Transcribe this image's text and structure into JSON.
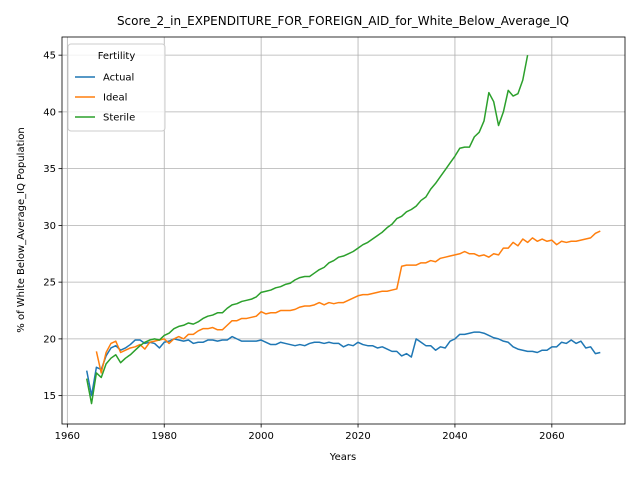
{
  "chart_data": {
    "type": "line",
    "title": "Score_2_in_EXPENDITURE_FOR_FOREIGN_AID_for_White_Below_Average_IQ",
    "x_label": "Years",
    "y_label": "% of White Below_Average_IQ Population",
    "legend_title": "Fertility",
    "legend": "upper left",
    "grid": true,
    "xlim": [
      1958.9,
      2075.1
    ],
    "ylim": [
      12.5,
      46.6
    ],
    "xticks": [
      1960,
      1980,
      2000,
      2020,
      2040,
      2060
    ],
    "yticks": [
      15,
      20,
      25,
      30,
      35,
      40,
      45
    ],
    "x": [
      1964,
      1965,
      1966,
      1967,
      1968,
      1969,
      1970,
      1971,
      1972,
      1973,
      1974,
      1975,
      1976,
      1977,
      1978,
      1979,
      1980,
      1981,
      1982,
      1983,
      1984,
      1985,
      1986,
      1987,
      1988,
      1989,
      1990,
      1991,
      1992,
      1993,
      1994,
      1995,
      1996,
      1997,
      1998,
      1999,
      2000,
      2001,
      2002,
      2003,
      2004,
      2005,
      2006,
      2007,
      2008,
      2009,
      2010,
      2011,
      2012,
      2013,
      2014,
      2015,
      2016,
      2017,
      2018,
      2019,
      2020,
      2021,
      2022,
      2023,
      2024,
      2025,
      2026,
      2027,
      2028,
      2029,
      2030,
      2031,
      2032,
      2033,
      2034,
      2035,
      2036,
      2037,
      2038,
      2039,
      2040,
      2041,
      2042,
      2043,
      2044,
      2045,
      2046,
      2047,
      2048,
      2049,
      2050,
      2051,
      2052,
      2053,
      2054,
      2055,
      2056,
      2057,
      2058,
      2059,
      2060,
      2061,
      2062,
      2063,
      2064,
      2065,
      2066,
      2067,
      2068,
      2069,
      2070
    ],
    "series": [
      {
        "name": "Actual",
        "color": "#1f77b4",
        "values": [
          17.2,
          15.0,
          17.5,
          17.3,
          18.5,
          19.2,
          19.4,
          19.0,
          19.2,
          19.5,
          19.9,
          19.9,
          19.6,
          19.7,
          19.6,
          19.2,
          19.7,
          19.8,
          20.0,
          19.9,
          19.8,
          19.9,
          19.6,
          19.7,
          19.7,
          19.9,
          19.9,
          19.8,
          19.9,
          19.9,
          20.2,
          20.0,
          19.8,
          19.8,
          19.8,
          19.8,
          19.9,
          19.7,
          19.5,
          19.5,
          19.7,
          19.6,
          19.5,
          19.4,
          19.5,
          19.4,
          19.6,
          19.7,
          19.7,
          19.6,
          19.7,
          19.6,
          19.6,
          19.3,
          19.5,
          19.4,
          19.7,
          19.5,
          19.4,
          19.4,
          19.2,
          19.3,
          19.1,
          18.9,
          18.9,
          18.5,
          18.7,
          18.4,
          20.0,
          19.7,
          19.4,
          19.4,
          19.0,
          19.3,
          19.2,
          19.8,
          20.0,
          20.4,
          20.4,
          20.5,
          20.6,
          20.6,
          20.5,
          20.3,
          20.1,
          20.0,
          19.8,
          19.7,
          19.3,
          19.1,
          19.0,
          18.9,
          18.9,
          18.8,
          19.0,
          19.0,
          19.3,
          19.3,
          19.7,
          19.6,
          19.9,
          19.6,
          19.8,
          19.2,
          19.3,
          18.7,
          18.8
        ]
      },
      {
        "name": "Ideal",
        "color": "#ff7f0e",
        "values": [
          null,
          null,
          18.9,
          17.0,
          18.8,
          19.6,
          19.8,
          18.8,
          19.0,
          19.2,
          19.3,
          19.5,
          19.1,
          19.7,
          19.8,
          19.9,
          20.0,
          19.6,
          20.0,
          20.2,
          20.0,
          20.4,
          20.4,
          20.7,
          20.9,
          20.9,
          21.0,
          20.8,
          20.8,
          21.2,
          21.6,
          21.6,
          21.8,
          21.8,
          21.9,
          22.0,
          22.4,
          22.2,
          22.3,
          22.3,
          22.5,
          22.5,
          22.5,
          22.6,
          22.8,
          22.9,
          22.9,
          23.0,
          23.2,
          23.0,
          23.2,
          23.1,
          23.2,
          23.2,
          23.4,
          23.6,
          23.8,
          23.9,
          23.9,
          24.0,
          24.1,
          24.2,
          24.2,
          24.3,
          24.4,
          26.4,
          26.5,
          26.5,
          26.5,
          26.7,
          26.7,
          26.9,
          26.8,
          27.1,
          27.2,
          27.3,
          27.4,
          27.5,
          27.7,
          27.5,
          27.5,
          27.3,
          27.4,
          27.2,
          27.5,
          27.4,
          28.0,
          28.0,
          28.5,
          28.2,
          28.8,
          28.5,
          28.9,
          28.6,
          28.8,
          28.6,
          28.7,
          28.3,
          28.6,
          28.5,
          28.6,
          28.6,
          28.7,
          28.8,
          28.9,
          29.3,
          29.5
        ]
      },
      {
        "name": "Sterile",
        "color": "#2ca02c",
        "values": [
          16.5,
          14.3,
          17.0,
          16.6,
          17.8,
          18.3,
          18.6,
          17.9,
          18.3,
          18.6,
          19.0,
          19.4,
          19.7,
          19.9,
          20.0,
          19.9,
          20.3,
          20.5,
          20.9,
          21.1,
          21.2,
          21.4,
          21.3,
          21.5,
          21.8,
          22.0,
          22.1,
          22.3,
          22.3,
          22.7,
          23.0,
          23.1,
          23.3,
          23.4,
          23.5,
          23.7,
          24.1,
          24.2,
          24.3,
          24.5,
          24.6,
          24.8,
          24.9,
          25.2,
          25.4,
          25.5,
          25.5,
          25.8,
          26.1,
          26.3,
          26.7,
          26.9,
          27.2,
          27.3,
          27.5,
          27.7,
          28.0,
          28.3,
          28.5,
          28.8,
          29.1,
          29.4,
          29.8,
          30.1,
          30.6,
          30.8,
          31.2,
          31.4,
          31.7,
          32.2,
          32.5,
          33.2,
          33.7,
          34.3,
          34.9,
          35.5,
          36.1,
          36.8,
          36.9,
          36.9,
          37.8,
          38.2,
          39.2,
          41.7,
          40.9,
          38.8,
          40.0,
          41.9,
          41.4,
          41.6,
          42.8,
          45.0,
          null,
          null,
          null,
          null,
          null,
          null,
          null,
          null,
          null,
          null,
          null,
          null,
          null,
          null,
          null
        ]
      }
    ]
  }
}
